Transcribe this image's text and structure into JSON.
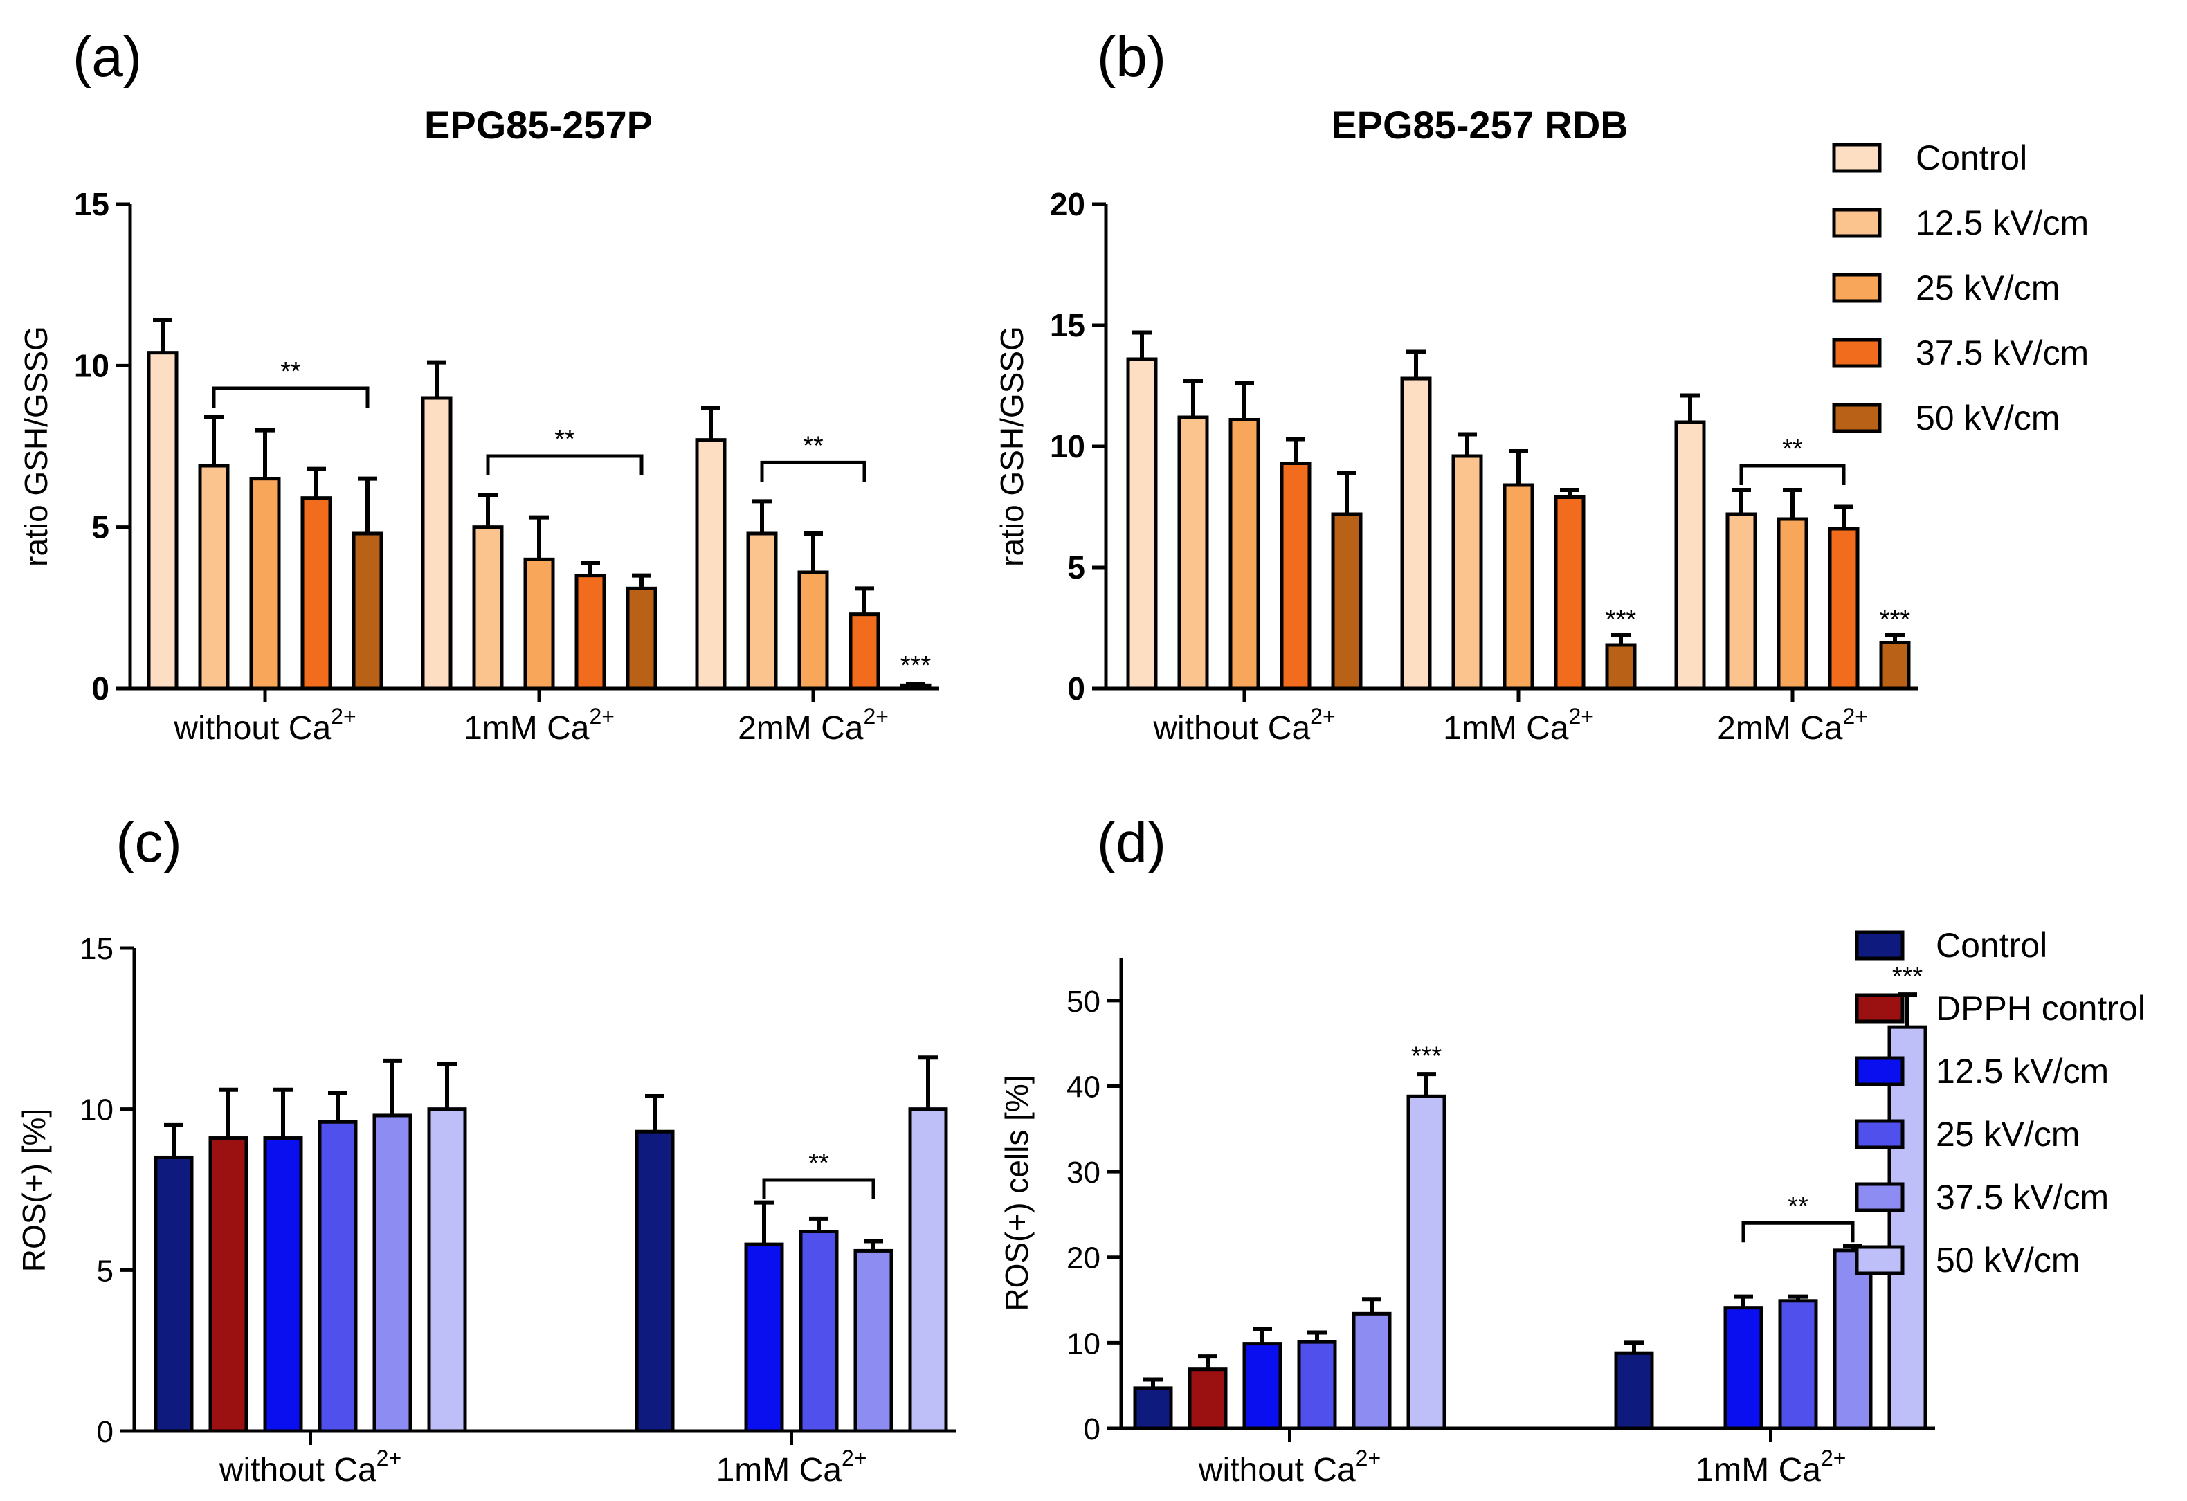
{
  "chart_data": [
    {
      "panel": "(a)",
      "type": "bar",
      "title": "EPG85-257P",
      "ylabel": "ratio GSH/GSSG",
      "ylim": [
        0,
        15
      ],
      "yticks": [
        "0",
        "5",
        "10",
        "15"
      ],
      "categories": [
        "without Ca",
        "1mM Ca",
        "2mM Ca"
      ],
      "category_superscript": "2+",
      "series": [
        {
          "name": "Control",
          "color": "#FDDEC3",
          "values": [
            10.4,
            9.0,
            7.7
          ],
          "errors": [
            1.0,
            1.1,
            1.0
          ]
        },
        {
          "name": "12.5 kV/cm",
          "color": "#FBC38E",
          "values": [
            6.9,
            5.0,
            4.8
          ],
          "errors": [
            1.5,
            1.0,
            1.0
          ]
        },
        {
          "name": "25  kV/cm",
          "color": "#F8A65A",
          "values": [
            6.5,
            4.0,
            3.6
          ],
          "errors": [
            1.5,
            1.3,
            1.2
          ]
        },
        {
          "name": "37.5  kV/cm",
          "color": "#F26C1E",
          "values": [
            5.9,
            3.5,
            2.3
          ],
          "errors": [
            0.9,
            0.4,
            0.8
          ]
        },
        {
          "name": "50  kV/cm",
          "color": "#BA6118",
          "values": [
            4.8,
            3.1,
            0.1
          ],
          "errors": [
            1.7,
            0.4,
            0.05
          ]
        }
      ],
      "significance": [
        {
          "text": "**",
          "category": 0,
          "from_series": 1,
          "to_series": 4,
          "level": 9.3
        },
        {
          "text": "**",
          "category": 1,
          "from_series": 1,
          "to_series": 4,
          "level": 7.2
        },
        {
          "text": "**",
          "category": 2,
          "from_series": 1,
          "to_series": 3,
          "level": 7.0
        },
        {
          "text": "***",
          "category": 2,
          "series": 4,
          "level": 0.45
        }
      ]
    },
    {
      "panel": "(b)",
      "type": "bar",
      "title": "EPG85-257 RDB",
      "ylabel": "ratio GSH/GSSG",
      "ylim": [
        0,
        20
      ],
      "yticks": [
        "0",
        "5",
        "10",
        "15",
        "20"
      ],
      "categories": [
        "without Ca",
        "1mM Ca",
        "2mM Ca"
      ],
      "category_superscript": "2+",
      "series": [
        {
          "name": "Control",
          "color": "#FDDEC3",
          "values": [
            13.6,
            12.8,
            11.0
          ],
          "errors": [
            1.1,
            1.1,
            1.1
          ]
        },
        {
          "name": "12.5 kV/cm",
          "color": "#FBC38E",
          "values": [
            11.2,
            9.6,
            7.2
          ],
          "errors": [
            1.5,
            0.9,
            1.0
          ]
        },
        {
          "name": "25  kV/cm",
          "color": "#F8A65A",
          "values": [
            11.1,
            8.4,
            7.0
          ],
          "errors": [
            1.5,
            1.4,
            1.2
          ]
        },
        {
          "name": "37.5  kV/cm",
          "color": "#F26C1E",
          "values": [
            9.3,
            7.9,
            6.6
          ],
          "errors": [
            1.0,
            0.3,
            0.9
          ]
        },
        {
          "name": "50  kV/cm",
          "color": "#BA6118",
          "values": [
            7.2,
            1.8,
            1.9
          ],
          "errors": [
            1.7,
            0.4,
            0.3
          ]
        }
      ],
      "significance": [
        {
          "text": "**",
          "category": 2,
          "from_series": 1,
          "to_series": 3,
          "level": 9.2
        },
        {
          "text": "***",
          "category": 1,
          "series": 4,
          "level": 2.5
        },
        {
          "text": "***",
          "category": 2,
          "series": 4,
          "level": 2.5
        }
      ],
      "legend": {
        "placement": "right",
        "entries": [
          "Control",
          "12.5 kV/cm",
          "25  kV/cm",
          "37.5  kV/cm",
          "50  kV/cm"
        ]
      }
    },
    {
      "panel": "(c)",
      "type": "bar",
      "ylabel": "ROS(+) [%]",
      "ylim": [
        0,
        15
      ],
      "yticks": [
        "0",
        "5",
        "10",
        "15"
      ],
      "categories": [
        "without Ca",
        "1mM Ca"
      ],
      "category_superscript": "2+",
      "series": [
        {
          "name": "Control",
          "color": "#0E1A7E",
          "values": [
            8.5,
            9.3
          ],
          "errors": [
            1.0,
            1.1
          ]
        },
        {
          "name": "DPPH control",
          "color": "#9B1010",
          "values": [
            9.1,
            null
          ],
          "errors": [
            1.5,
            null
          ]
        },
        {
          "name": "12.5  kV/cm",
          "color": "#0A0FF0",
          "values": [
            9.1,
            5.8
          ],
          "errors": [
            1.5,
            1.3
          ]
        },
        {
          "name": "25 kV/cm",
          "color": "#5050EC",
          "values": [
            9.6,
            6.2
          ],
          "errors": [
            0.9,
            0.4
          ]
        },
        {
          "name": "37.5  kV/cm",
          "color": "#8C8CF2",
          "values": [
            9.8,
            5.6
          ],
          "errors": [
            1.7,
            0.3
          ]
        },
        {
          "name": "50 kV/cm",
          "color": "#BEBEF9",
          "values": [
            10.0,
            10.0
          ],
          "errors": [
            1.4,
            1.6
          ]
        }
      ],
      "significance": [
        {
          "text": "**",
          "category": 1,
          "from_series": 2,
          "to_series": 4,
          "level": 7.8
        }
      ]
    },
    {
      "panel": "(d)",
      "type": "bar",
      "ylabel": "ROS(+) cells [%]",
      "ylim": [
        0,
        55
      ],
      "yticks": [
        "0",
        "10",
        "20",
        "30",
        "40",
        "50"
      ],
      "categories": [
        "without Ca",
        "1mM Ca"
      ],
      "category_superscript": "2+",
      "series": [
        {
          "name": "Control",
          "color": "#0E1A7E",
          "values": [
            4.7,
            8.8
          ],
          "errors": [
            1.0,
            1.2
          ]
        },
        {
          "name": "DPPH control",
          "color": "#9B1010",
          "values": [
            6.9,
            null
          ],
          "errors": [
            1.5,
            null
          ]
        },
        {
          "name": "12.5  kV/cm",
          "color": "#0A0FF0",
          "values": [
            9.9,
            14.1
          ],
          "errors": [
            1.7,
            1.3
          ]
        },
        {
          "name": "25 kV/cm",
          "color": "#5050EC",
          "values": [
            10.1,
            14.9
          ],
          "errors": [
            1.1,
            0.5
          ]
        },
        {
          "name": "37.5  kV/cm",
          "color": "#8C8CF2",
          "values": [
            13.4,
            20.8
          ],
          "errors": [
            1.7,
            0.5
          ]
        },
        {
          "name": "50 kV/cm",
          "color": "#BEBEF9",
          "values": [
            38.8,
            46.9
          ],
          "errors": [
            2.6,
            3.8
          ]
        }
      ],
      "significance": [
        {
          "text": "**",
          "category": 1,
          "from_series": 2,
          "to_series": 4,
          "level": 24.0
        },
        {
          "text": "***",
          "category": 0,
          "series": 5,
          "level": 42.5
        },
        {
          "text": "***",
          "category": 1,
          "series": 5,
          "level": 51.8
        }
      ],
      "legend": {
        "placement": "right",
        "entries": [
          "Control",
          "DPPH control",
          "12.5  kV/cm",
          "25 kV/cm",
          "37.5  kV/cm",
          "50 kV/cm"
        ]
      }
    }
  ]
}
